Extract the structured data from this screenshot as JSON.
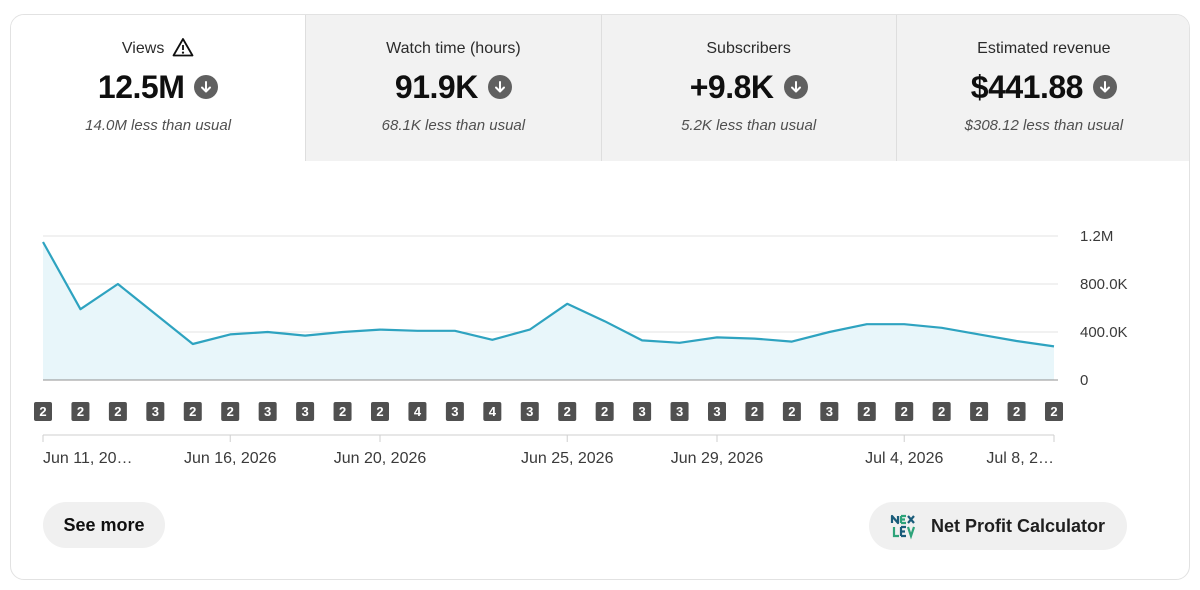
{
  "metrics": [
    {
      "label": "Views",
      "value": "12.5M",
      "comparison": "14.0M less than usual",
      "warning_icon": "warning-triangle-icon",
      "trend_icon": "arrow-down-circle-icon"
    },
    {
      "label": "Watch time (hours)",
      "value": "91.9K",
      "comparison": "68.1K less than usual",
      "trend_icon": "arrow-down-circle-icon"
    },
    {
      "label": "Subscribers",
      "value": "+9.8K",
      "comparison": "5.2K less than usual",
      "trend_icon": "arrow-down-circle-icon"
    },
    {
      "label": "Estimated revenue",
      "value": "$441.88",
      "comparison": "$308.12 less than usual",
      "trend_icon": "arrow-down-circle-icon"
    }
  ],
  "chart_data": {
    "type": "area",
    "x_labels": [
      "Jun 11, 20…",
      "Jun 16, 2026",
      "Jun 20, 2026",
      "Jun 25, 2026",
      "Jun 29, 2026",
      "Jul 4, 2026",
      "Jul 8, 2…"
    ],
    "x_label_day_index": [
      0,
      5,
      9,
      14,
      18,
      23,
      27
    ],
    "values": [
      1150000,
      590000,
      800000,
      550000,
      300000,
      380000,
      400000,
      370000,
      400000,
      420000,
      410000,
      410000,
      335000,
      420000,
      635000,
      490000,
      330000,
      310000,
      355000,
      345000,
      320000,
      400000,
      465000,
      465000,
      435000,
      380000,
      325000,
      280000
    ],
    "y_ticks": [
      "1.2M",
      "800.0K",
      "400.0K",
      "0"
    ],
    "y_tick_values": [
      1200000,
      800000,
      400000,
      0
    ],
    "ylim": [
      0,
      1200000
    ],
    "markers": [
      "2",
      "2",
      "2",
      "3",
      "2",
      "2",
      "3",
      "3",
      "2",
      "2",
      "4",
      "3",
      "4",
      "3",
      "2",
      "2",
      "3",
      "3",
      "3",
      "2",
      "2",
      "3",
      "2",
      "2",
      "2",
      "2",
      "2",
      "2"
    ],
    "line_color": "#2ea3c0",
    "fill_color": "#e8f6fa",
    "grid": true
  },
  "buttons": {
    "see_more": "See more",
    "net_profit": "Net Profit Calculator"
  },
  "colors": {
    "accent": "#2ea3c0",
    "marker_bg": "#505050",
    "tab_inactive": "#f2f2f2"
  }
}
